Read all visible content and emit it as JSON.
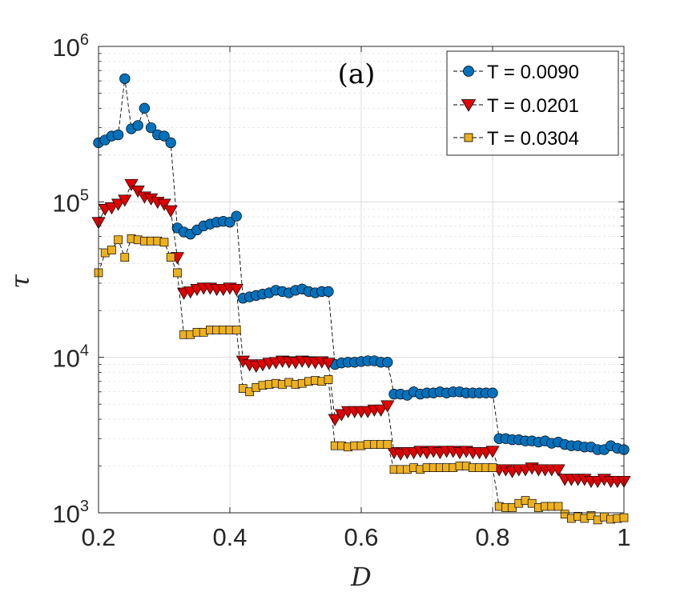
{
  "chart_data": {
    "type": "line",
    "title": "",
    "panel_label": "(a)",
    "xlabel": "D",
    "ylabel": "τ",
    "xlim": [
      0.2,
      1.0
    ],
    "ylim": [
      1000,
      1000000
    ],
    "yscale": "log",
    "grid": true,
    "legend_position": "top-right",
    "xticks": [
      {
        "value": 0.2,
        "label": "0.2"
      },
      {
        "value": 0.4,
        "label": "0.4"
      },
      {
        "value": 0.6,
        "label": "0.6"
      },
      {
        "value": 0.8,
        "label": "0.8"
      },
      {
        "value": 1.0,
        "label": "1"
      }
    ],
    "yticks": [
      {
        "value": 1000,
        "base": "10",
        "exp": "3"
      },
      {
        "value": 10000,
        "base": "10",
        "exp": "4"
      },
      {
        "value": 100000,
        "base": "10",
        "exp": "5"
      },
      {
        "value": 1000000,
        "base": "10",
        "exp": "6"
      }
    ],
    "series": [
      {
        "name": "T = 0.0090",
        "marker": "circle",
        "color": "#0072BD",
        "points": [
          [
            0.2,
            240000
          ],
          [
            0.21,
            250000
          ],
          [
            0.22,
            265000
          ],
          [
            0.23,
            270000
          ],
          [
            0.24,
            620000
          ],
          [
            0.25,
            295000
          ],
          [
            0.26,
            310000
          ],
          [
            0.27,
            400000
          ],
          [
            0.28,
            300000
          ],
          [
            0.29,
            270000
          ],
          [
            0.3,
            265000
          ],
          [
            0.31,
            240000
          ],
          [
            0.32,
            68000
          ],
          [
            0.33,
            64000
          ],
          [
            0.34,
            62000
          ],
          [
            0.35,
            66000
          ],
          [
            0.36,
            70000
          ],
          [
            0.37,
            72000
          ],
          [
            0.38,
            74000
          ],
          [
            0.39,
            75000
          ],
          [
            0.4,
            74000
          ],
          [
            0.41,
            81000
          ],
          [
            0.42,
            24000
          ],
          [
            0.43,
            24500
          ],
          [
            0.44,
            25000
          ],
          [
            0.45,
            25500
          ],
          [
            0.46,
            26000
          ],
          [
            0.47,
            27000
          ],
          [
            0.48,
            26500
          ],
          [
            0.49,
            26000
          ],
          [
            0.5,
            27000
          ],
          [
            0.51,
            27500
          ],
          [
            0.52,
            26500
          ],
          [
            0.53,
            26000
          ],
          [
            0.54,
            26500
          ],
          [
            0.55,
            26500
          ],
          [
            0.56,
            9000
          ],
          [
            0.57,
            9200
          ],
          [
            0.58,
            9300
          ],
          [
            0.59,
            9300
          ],
          [
            0.6,
            9400
          ],
          [
            0.61,
            9500
          ],
          [
            0.62,
            9500
          ],
          [
            0.63,
            9300
          ],
          [
            0.64,
            9300
          ],
          [
            0.65,
            5800
          ],
          [
            0.66,
            5800
          ],
          [
            0.67,
            5700
          ],
          [
            0.68,
            6000
          ],
          [
            0.69,
            5800
          ],
          [
            0.7,
            5900
          ],
          [
            0.71,
            5900
          ],
          [
            0.72,
            6000
          ],
          [
            0.73,
            5900
          ],
          [
            0.74,
            6000
          ],
          [
            0.75,
            6000
          ],
          [
            0.76,
            5900
          ],
          [
            0.77,
            5900
          ],
          [
            0.78,
            5900
          ],
          [
            0.79,
            5900
          ],
          [
            0.8,
            5900
          ],
          [
            0.81,
            3000
          ],
          [
            0.82,
            3000
          ],
          [
            0.83,
            2950
          ],
          [
            0.84,
            2950
          ],
          [
            0.85,
            2900
          ],
          [
            0.86,
            2900
          ],
          [
            0.87,
            2850
          ],
          [
            0.88,
            2900
          ],
          [
            0.89,
            2800
          ],
          [
            0.9,
            2850
          ],
          [
            0.91,
            2750
          ],
          [
            0.92,
            2700
          ],
          [
            0.93,
            2700
          ],
          [
            0.94,
            2650
          ],
          [
            0.95,
            2650
          ],
          [
            0.96,
            2550
          ],
          [
            0.97,
            2550
          ],
          [
            0.98,
            2700
          ],
          [
            0.99,
            2600
          ],
          [
            1.0,
            2550
          ]
        ]
      },
      {
        "name": "T = 0.0201",
        "marker": "triangle-down",
        "color": "#E00000",
        "points": [
          [
            0.2,
            74000
          ],
          [
            0.21,
            90000
          ],
          [
            0.22,
            92000
          ],
          [
            0.23,
            97000
          ],
          [
            0.24,
            103000
          ],
          [
            0.25,
            130000
          ],
          [
            0.26,
            118000
          ],
          [
            0.27,
            108000
          ],
          [
            0.28,
            105000
          ],
          [
            0.29,
            100000
          ],
          [
            0.3,
            97000
          ],
          [
            0.31,
            88000
          ],
          [
            0.32,
            44000
          ],
          [
            0.33,
            26000
          ],
          [
            0.34,
            26500
          ],
          [
            0.35,
            27500
          ],
          [
            0.36,
            28000
          ],
          [
            0.37,
            28000
          ],
          [
            0.38,
            27500
          ],
          [
            0.39,
            27500
          ],
          [
            0.4,
            28000
          ],
          [
            0.41,
            27500
          ],
          [
            0.42,
            9500
          ],
          [
            0.43,
            9000
          ],
          [
            0.44,
            8800
          ],
          [
            0.45,
            9000
          ],
          [
            0.46,
            9200
          ],
          [
            0.47,
            9300
          ],
          [
            0.48,
            9500
          ],
          [
            0.49,
            9400
          ],
          [
            0.5,
            9300
          ],
          [
            0.51,
            9500
          ],
          [
            0.52,
            9400
          ],
          [
            0.53,
            9300
          ],
          [
            0.54,
            9400
          ],
          [
            0.55,
            9200
          ],
          [
            0.56,
            4000
          ],
          [
            0.57,
            4300
          ],
          [
            0.58,
            4500
          ],
          [
            0.59,
            4500
          ],
          [
            0.6,
            4500
          ],
          [
            0.61,
            4500
          ],
          [
            0.62,
            4600
          ],
          [
            0.63,
            4600
          ],
          [
            0.64,
            4900
          ],
          [
            0.65,
            2450
          ],
          [
            0.66,
            2400
          ],
          [
            0.67,
            2450
          ],
          [
            0.68,
            2450
          ],
          [
            0.69,
            2500
          ],
          [
            0.7,
            2450
          ],
          [
            0.71,
            2500
          ],
          [
            0.72,
            2450
          ],
          [
            0.73,
            2500
          ],
          [
            0.74,
            2500
          ],
          [
            0.75,
            2450
          ],
          [
            0.76,
            2500
          ],
          [
            0.77,
            2450
          ],
          [
            0.78,
            2450
          ],
          [
            0.79,
            2450
          ],
          [
            0.8,
            2500
          ],
          [
            0.81,
            1900
          ],
          [
            0.82,
            1900
          ],
          [
            0.83,
            1850
          ],
          [
            0.84,
            1900
          ],
          [
            0.85,
            1900
          ],
          [
            0.86,
            1950
          ],
          [
            0.87,
            1900
          ],
          [
            0.88,
            1900
          ],
          [
            0.89,
            1900
          ],
          [
            0.9,
            1900
          ],
          [
            0.91,
            1650
          ],
          [
            0.92,
            1650
          ],
          [
            0.93,
            1650
          ],
          [
            0.94,
            1650
          ],
          [
            0.95,
            1600
          ],
          [
            0.96,
            1600
          ],
          [
            0.97,
            1650
          ],
          [
            0.98,
            1600
          ],
          [
            0.99,
            1600
          ],
          [
            1.0,
            1600
          ]
        ]
      },
      {
        "name": "T = 0.0304",
        "marker": "square",
        "color": "#EDB120",
        "points": [
          [
            0.2,
            35000
          ],
          [
            0.21,
            47000
          ],
          [
            0.22,
            49000
          ],
          [
            0.23,
            57000
          ],
          [
            0.24,
            44000
          ],
          [
            0.25,
            58000
          ],
          [
            0.26,
            57000
          ],
          [
            0.27,
            56000
          ],
          [
            0.28,
            56000
          ],
          [
            0.29,
            56000
          ],
          [
            0.3,
            55000
          ],
          [
            0.31,
            44000
          ],
          [
            0.32,
            35000
          ],
          [
            0.33,
            14000
          ],
          [
            0.34,
            14000
          ],
          [
            0.35,
            14500
          ],
          [
            0.36,
            14500
          ],
          [
            0.37,
            15000
          ],
          [
            0.38,
            15000
          ],
          [
            0.39,
            15000
          ],
          [
            0.4,
            15000
          ],
          [
            0.41,
            15000
          ],
          [
            0.42,
            6300
          ],
          [
            0.43,
            6000
          ],
          [
            0.44,
            6400
          ],
          [
            0.45,
            6600
          ],
          [
            0.46,
            6700
          ],
          [
            0.47,
            6800
          ],
          [
            0.48,
            6700
          ],
          [
            0.49,
            6900
          ],
          [
            0.5,
            6700
          ],
          [
            0.51,
            6800
          ],
          [
            0.52,
            7000
          ],
          [
            0.53,
            7100
          ],
          [
            0.54,
            7000
          ],
          [
            0.55,
            7200
          ],
          [
            0.56,
            2700
          ],
          [
            0.57,
            2700
          ],
          [
            0.58,
            2650
          ],
          [
            0.59,
            2700
          ],
          [
            0.6,
            2700
          ],
          [
            0.61,
            2750
          ],
          [
            0.62,
            2750
          ],
          [
            0.63,
            2750
          ],
          [
            0.64,
            2750
          ],
          [
            0.65,
            1900
          ],
          [
            0.66,
            1900
          ],
          [
            0.67,
            1900
          ],
          [
            0.68,
            1950
          ],
          [
            0.69,
            1900
          ],
          [
            0.7,
            1950
          ],
          [
            0.71,
            1950
          ],
          [
            0.72,
            1950
          ],
          [
            0.73,
            1950
          ],
          [
            0.74,
            1950
          ],
          [
            0.75,
            2000
          ],
          [
            0.76,
            2000
          ],
          [
            0.77,
            1950
          ],
          [
            0.78,
            1950
          ],
          [
            0.79,
            1950
          ],
          [
            0.8,
            1950
          ],
          [
            0.81,
            1100
          ],
          [
            0.82,
            1080
          ],
          [
            0.83,
            1080
          ],
          [
            0.84,
            1150
          ],
          [
            0.85,
            1200
          ],
          [
            0.86,
            1150
          ],
          [
            0.87,
            1080
          ],
          [
            0.88,
            1100
          ],
          [
            0.89,
            1100
          ],
          [
            0.9,
            1100
          ],
          [
            0.91,
            980
          ],
          [
            0.92,
            920
          ],
          [
            0.93,
            950
          ],
          [
            0.94,
            920
          ],
          [
            0.95,
            960
          ],
          [
            0.96,
            900
          ],
          [
            0.97,
            940
          ],
          [
            0.98,
            910
          ],
          [
            0.99,
            920
          ],
          [
            1.0,
            930
          ]
        ]
      }
    ]
  }
}
